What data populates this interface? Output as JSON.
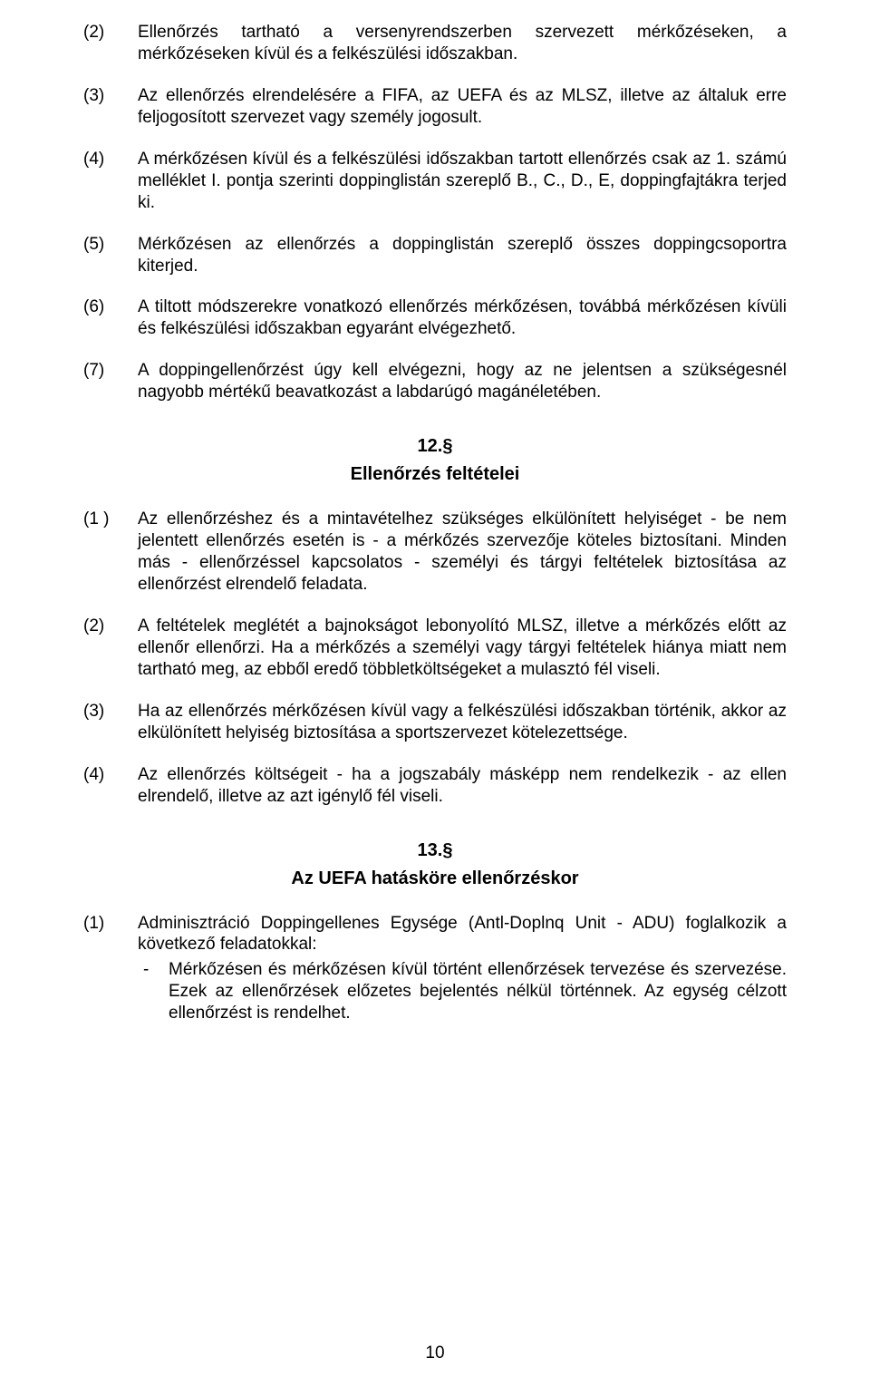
{
  "paragraphs_a": [
    {
      "num": "(2)",
      "text": "Ellenőrzés tartható a versenyrendszerben szervezett mérkőzéseken, a mérkőzéseken kívül és a felkészülési időszakban."
    },
    {
      "num": "(3)",
      "text": "Az ellenőrzés elrendelésére a FIFA, az UEFA és az MLSZ, illetve az általuk erre feljogosított szervezet vagy személy jogosult."
    },
    {
      "num": "(4)",
      "text": "A mérkőzésen kívül és a felkészülési időszakban tartott ellenőrzés csak az 1. számú melléklet I. pontja szerinti doppinglistán szereplő B., C., D., E, doppingfajtákra terjed ki."
    },
    {
      "num": "(5)",
      "text": "Mérkőzésen az ellenőrzés a doppinglistán szereplő összes doppingcsoportra kiterjed."
    },
    {
      "num": "(6)",
      "text": "A tiltott módszerekre vonatkozó ellenőrzés mérkőzésen, továbbá mérkőzésen kívüli és felkészülési időszakban egyaránt elvégezhető."
    },
    {
      "num": "(7)",
      "text": "A doppingellenőrzést úgy kell elvégezni, hogy az ne jelentsen a szükségesnél nagyobb mértékű beavatkozást a labdarúgó magánéletében."
    }
  ],
  "section12": {
    "num": "12.§",
    "title": "Ellenőrzés feltételei"
  },
  "paragraphs_b": [
    {
      "num": "(1 )",
      "text": "Az ellenőrzéshez és a mintavételhez szükséges elkülönített helyiséget - be nem jelentett ellenőrzés esetén is - a mérkőzés szervezője köteles biztosítani. Minden más - ellenőrzéssel kapcsolatos - személyi és tárgyi feltételek biztosítása az ellenőrzést elrendelő feladata."
    },
    {
      "num": "(2)",
      "text": "A feltételek meglétét a bajnokságot lebonyolító MLSZ, illetve a mérkőzés előtt az ellenőr ellenőrzi. Ha a mérkőzés a személyi vagy tárgyi feltételek hiánya miatt nem tartható meg, az ebből eredő többletköltségeket a mulasztó fél viseli."
    },
    {
      "num": "(3)",
      "text": "Ha az ellenőrzés mérkőzésen kívül vagy a felkészülési időszakban történik, akkor az elkülönített helyiség biztosítása a sportszervezet kötelezettsége."
    },
    {
      "num": "(4)",
      "text": "Az ellenőrzés költségeit - ha a jogszabály másképp nem rendelkezik - az ellen elrendelő, illetve az azt igénylő fél viseli."
    }
  ],
  "section13": {
    "num": "13.§",
    "title": "Az UEFA hatásköre ellenőrzéskor"
  },
  "para_c_num": "(1)",
  "para_c_lead": " Adminisztráció Doppingellenes Egysége (Antl-Doplnq Unit - ADU) foglalkozik a következő feladatokkal:",
  "para_c_dash": "-",
  "para_c_item": "Mérkőzésen és mérkőzésen kívül történt ellenőrzések tervezése és szervezése. Ezek az ellenőrzések előzetes bejelentés nélkül történnek. Az egység célzott ellenőrzést is rendelhet.",
  "page_number": "10"
}
